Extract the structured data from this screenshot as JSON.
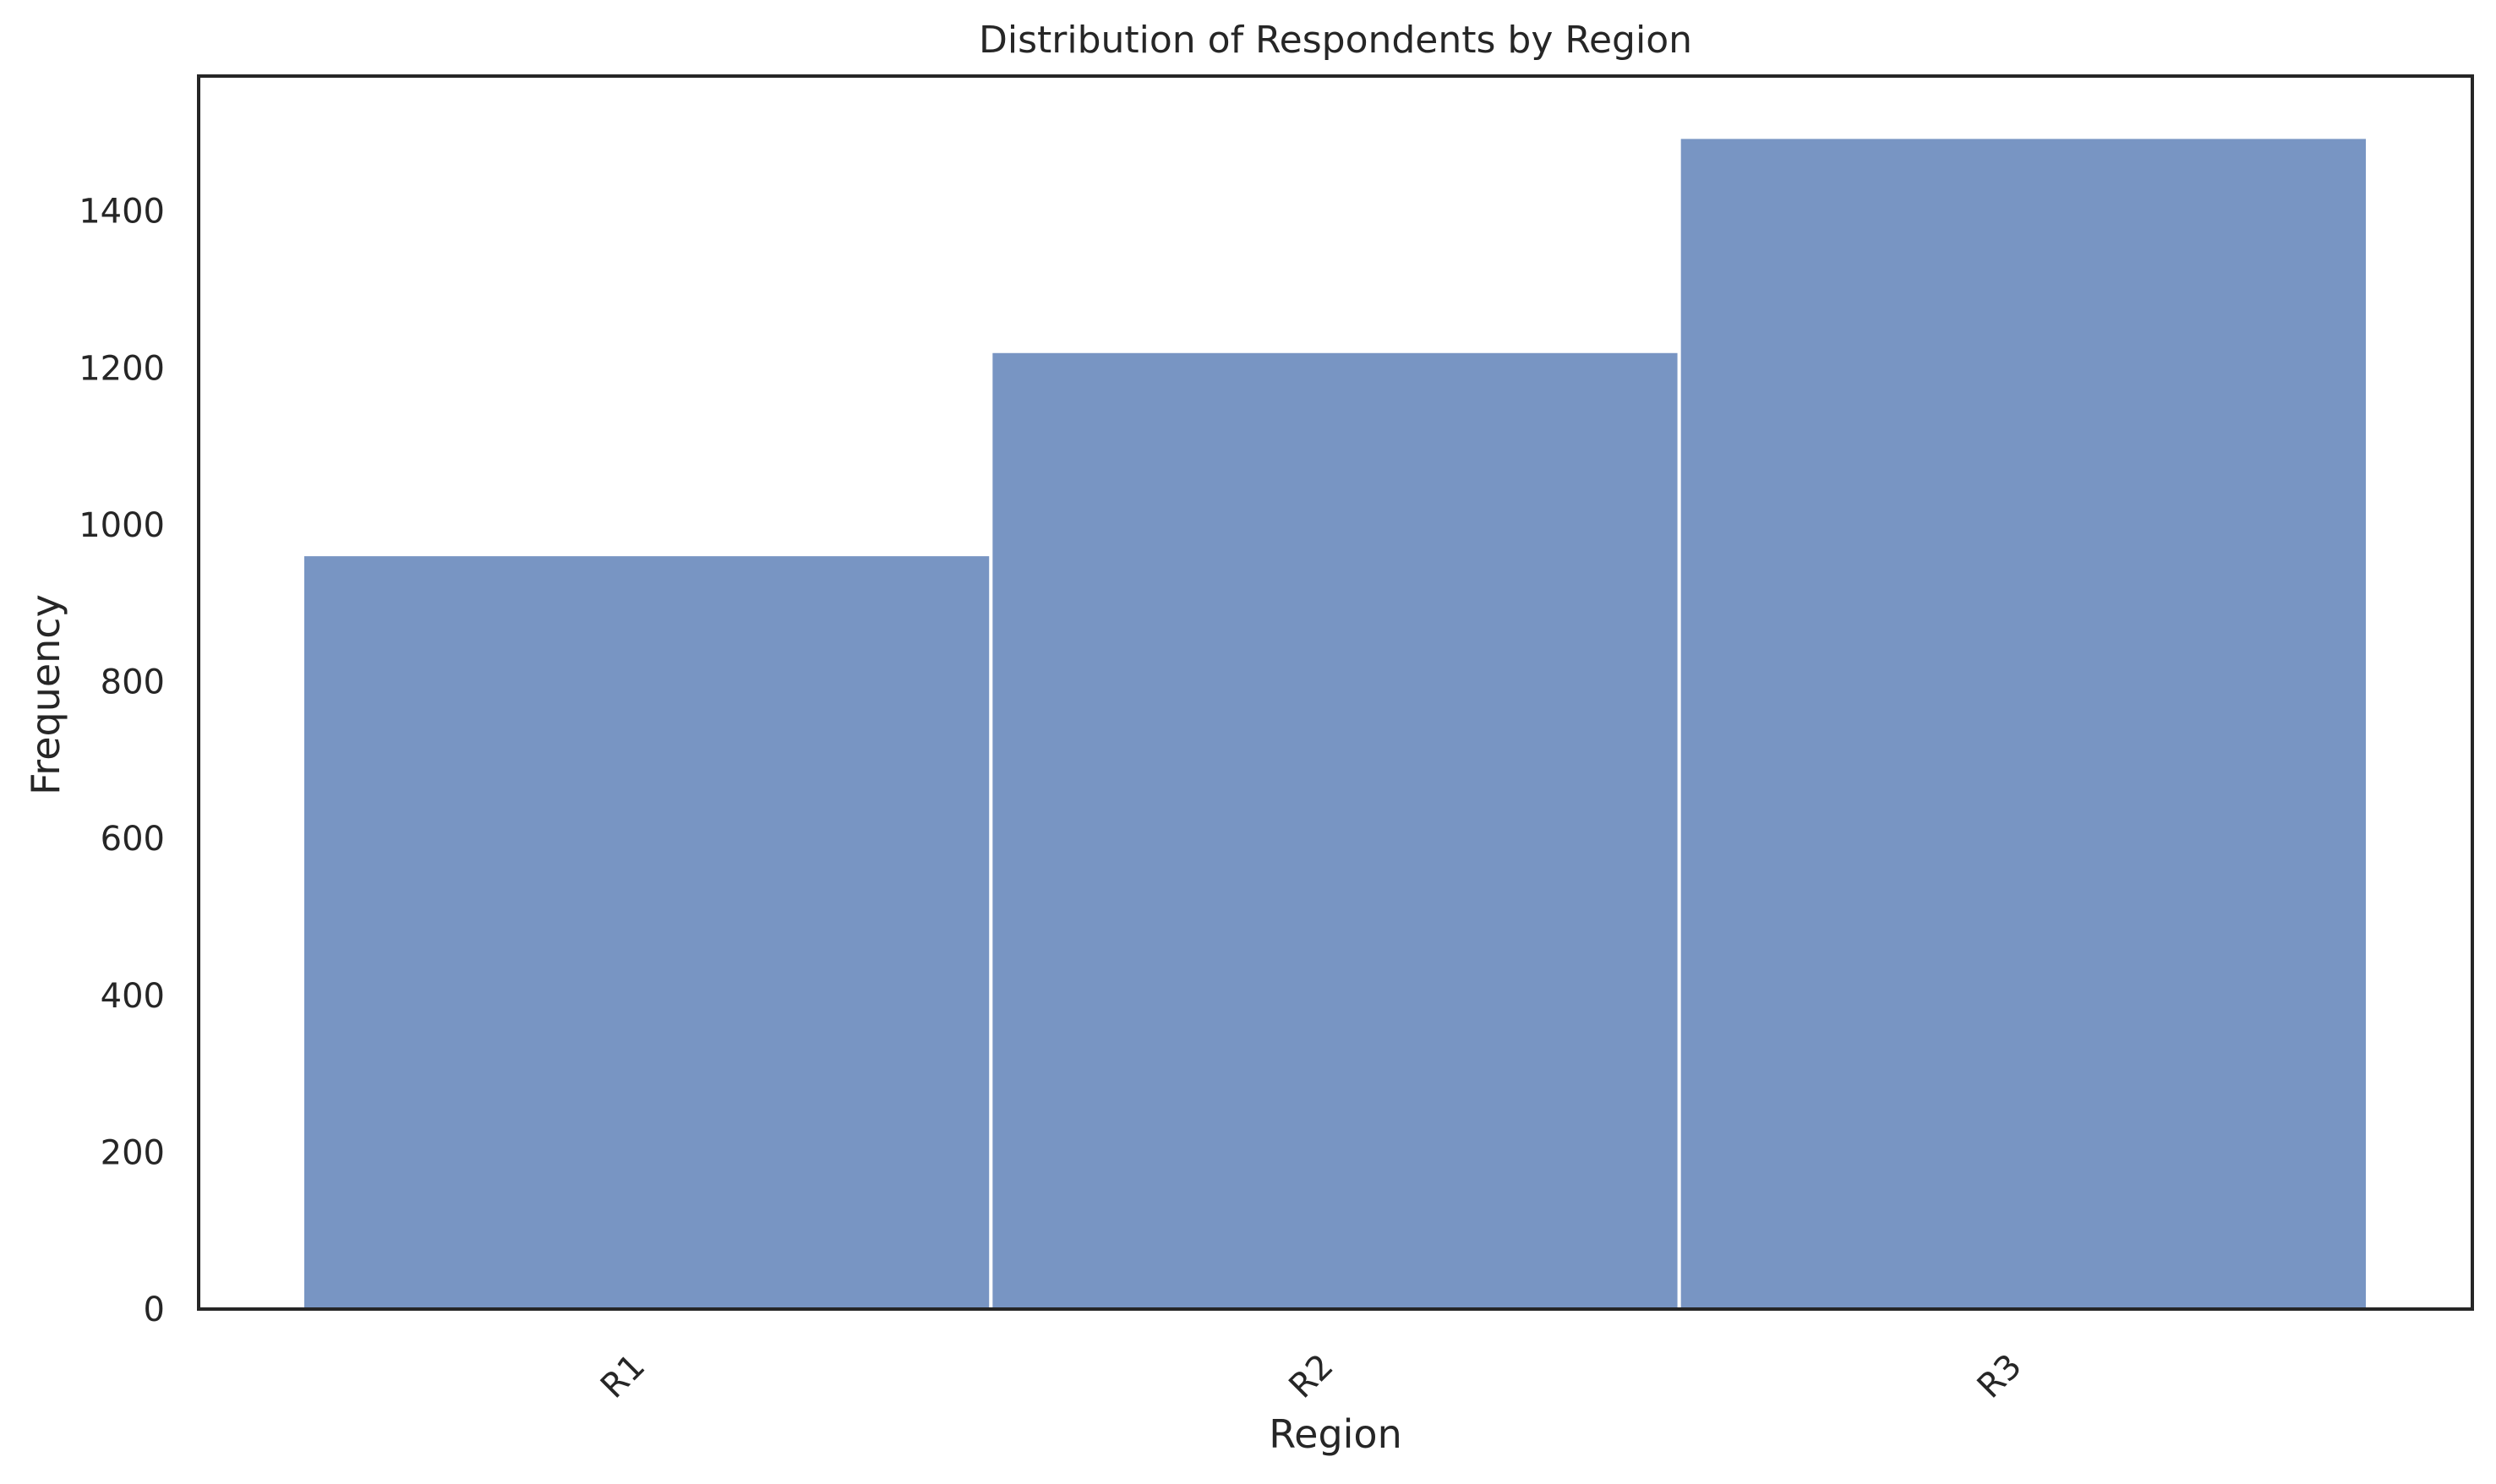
{
  "chart_data": {
    "type": "bar",
    "title": "Distribution of Respondents by Region",
    "xlabel": "Region",
    "ylabel": "Frequency",
    "categories": [
      "R1",
      "R2",
      "R3"
    ],
    "values": [
      962,
      1221,
      1494
    ],
    "ylim": [
      0,
      1572
    ],
    "yticks": [
      0,
      200,
      400,
      600,
      800,
      1000,
      1200,
      1400
    ],
    "grid": false,
    "legend": "none",
    "bar_color": "#7895c3",
    "bar_edge_color": "#ffffff",
    "axes_color": "#262626"
  }
}
